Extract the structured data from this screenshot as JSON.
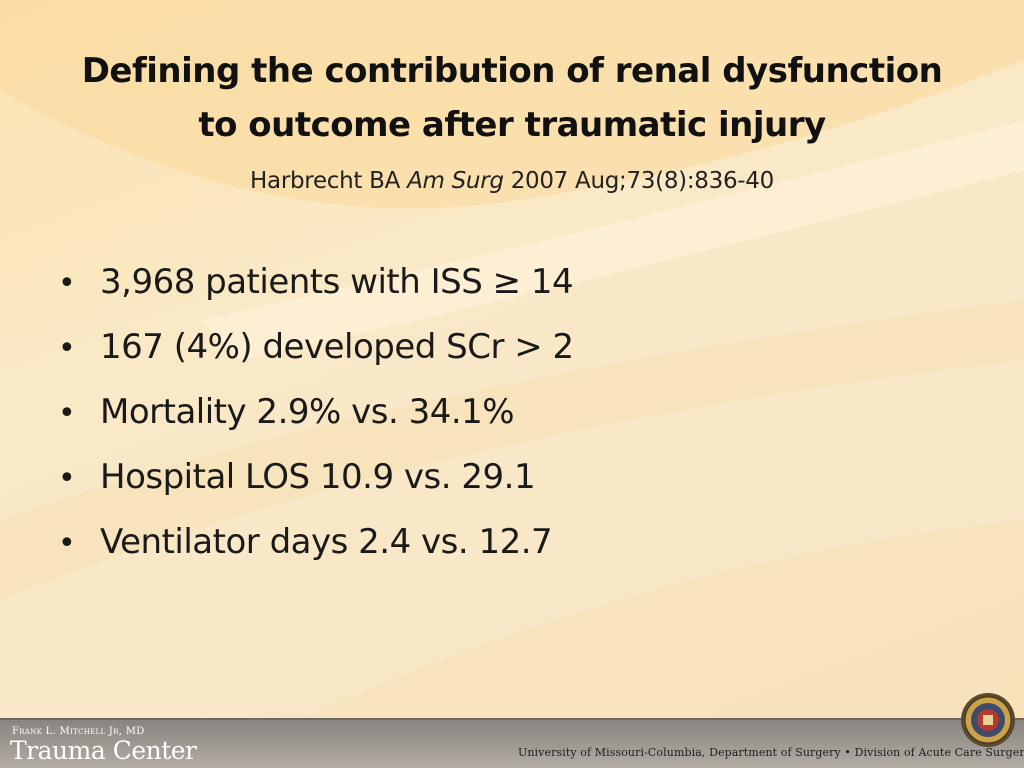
{
  "slide": {
    "title_line1": "Defining the contribution of renal dysfunction",
    "title_line2": "to outcome after traumatic injury",
    "citation": {
      "author": "Harbrecht BA",
      "journal": "Am Surg",
      "details": "2007 Aug;73(8):836-40"
    },
    "bullet_symbol": "•",
    "bullets": [
      "3,968 patients with ISS ≥ 14",
      "167 (4%) developed SCr > 2",
      "Mortality 2.9% vs. 34.1%",
      "Hospital LOS 10.9 vs. 29.1",
      "Ventilator days 2.4 vs. 12.7"
    ]
  },
  "footer": {
    "brand_small": "Frank L. Mitchell Jr, MD",
    "brand_large": "Trauma Center",
    "affiliation": "University of Missouri-Columbia, Department of Surgery • Division of Acute Care Surgery"
  },
  "colors": {
    "background": "#f8e6c2",
    "footer_bar": "#9a948e"
  }
}
